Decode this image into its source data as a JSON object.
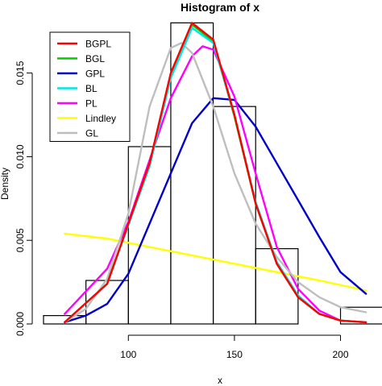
{
  "chart_data": {
    "type": "histogram",
    "title": "Histogram of x",
    "xlabel": "x",
    "ylabel": "Density",
    "xlim": [
      60,
      215
    ],
    "ylim": [
      0,
      0.0185
    ],
    "x_ticks": [
      100,
      150,
      200
    ],
    "y_ticks": [
      0.0,
      0.005,
      0.01,
      0.015
    ],
    "y_tick_labels": [
      "0.000",
      "0.005",
      "0.010",
      "0.015"
    ],
    "x_tick_labels": [
      "100",
      "150",
      "200"
    ],
    "grid": false,
    "legend_position": "top-left",
    "bins": [
      {
        "x0": 60,
        "x1": 80,
        "density": 0.0005
      },
      {
        "x0": 80,
        "x1": 100,
        "density": 0.0026
      },
      {
        "x0": 100,
        "x1": 120,
        "density": 0.0106
      },
      {
        "x0": 120,
        "x1": 140,
        "density": 0.018
      },
      {
        "x0": 140,
        "x1": 160,
        "density": 0.013
      },
      {
        "x0": 160,
        "x1": 180,
        "density": 0.0045
      },
      {
        "x0": 180,
        "x1": 200,
        "density": 0.0
      },
      {
        "x0": 200,
        "x1": 220,
        "density": 0.001
      }
    ],
    "series": [
      {
        "name": "BGPL",
        "color": "#ff0000",
        "x": [
          70,
          90,
          110,
          120,
          130,
          140,
          150,
          160,
          170,
          180,
          190,
          200,
          212
        ],
        "y": [
          0.0001,
          0.0024,
          0.0096,
          0.015,
          0.018,
          0.017,
          0.0125,
          0.0072,
          0.0036,
          0.0016,
          0.0006,
          0.0002,
          0.0001
        ]
      },
      {
        "name": "BGL",
        "color": "#00cc00",
        "x": [
          70,
          90,
          110,
          120,
          130,
          140,
          150,
          160,
          170,
          180,
          190,
          200,
          212
        ],
        "y": [
          0.0001,
          0.0024,
          0.0095,
          0.0149,
          0.0179,
          0.0169,
          0.0124,
          0.0072,
          0.0036,
          0.0016,
          0.0006,
          0.0002,
          0.0001
        ]
      },
      {
        "name": "GPL",
        "color": "#0000cc",
        "x": [
          70,
          80,
          90,
          100,
          110,
          120,
          130,
          140,
          150,
          160,
          170,
          180,
          190,
          200,
          212
        ],
        "y": [
          0.0001,
          0.0005,
          0.0012,
          0.003,
          0.006,
          0.009,
          0.012,
          0.0135,
          0.0134,
          0.0118,
          0.0096,
          0.0074,
          0.0052,
          0.0031,
          0.0018
        ]
      },
      {
        "name": "BL",
        "color": "#00e5e5",
        "x": [
          70,
          90,
          110,
          120,
          130,
          140,
          150,
          160,
          170,
          180,
          190,
          200,
          212
        ],
        "y": [
          0.0001,
          0.0024,
          0.0094,
          0.0147,
          0.0177,
          0.0168,
          0.0125,
          0.0073,
          0.0037,
          0.0017,
          0.0006,
          0.0002,
          0.0001
        ]
      },
      {
        "name": "PL",
        "color": "#ff00ff",
        "x": [
          70,
          90,
          100,
          110,
          120,
          130,
          135,
          140,
          150,
          160,
          170,
          180,
          190,
          200,
          212
        ],
        "y": [
          0.0006,
          0.0033,
          0.0061,
          0.0098,
          0.0135,
          0.016,
          0.0166,
          0.0164,
          0.0136,
          0.009,
          0.0046,
          0.0021,
          0.0008,
          0.0002,
          0.0001
        ]
      },
      {
        "name": "Lindley",
        "color": "#ffff00",
        "x": [
          70,
          90,
          110,
          130,
          150,
          170,
          190,
          212
        ],
        "y": [
          0.0054,
          0.0051,
          0.0046,
          0.0041,
          0.0036,
          0.0031,
          0.0026,
          0.002
        ]
      },
      {
        "name": "GL",
        "color": "#bebebe",
        "x": [
          70,
          80,
          90,
          100,
          110,
          120,
          125,
          130,
          140,
          150,
          160,
          170,
          180,
          190,
          200,
          212
        ],
        "y": [
          0.0001,
          0.0009,
          0.0027,
          0.0066,
          0.013,
          0.0165,
          0.0168,
          0.0162,
          0.013,
          0.009,
          0.006,
          0.004,
          0.0025,
          0.0016,
          0.001,
          0.0007
        ]
      }
    ]
  }
}
